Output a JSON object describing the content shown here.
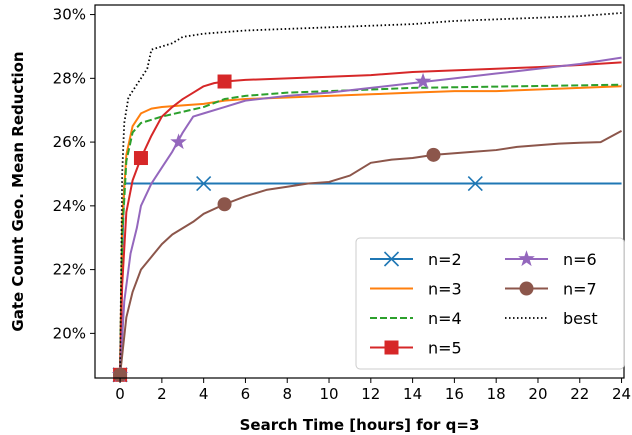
{
  "chart_data": {
    "type": "line",
    "xlabel": "Search Time [hours] for q=3",
    "ylabel": "Gate Count Geo. Mean Reduction",
    "xlim": [
      -1.2,
      24.5
    ],
    "ylim": [
      18.6,
      30.3
    ],
    "xticks": [
      0,
      2,
      4,
      6,
      8,
      10,
      12,
      14,
      16,
      18,
      20,
      22,
      24
    ],
    "xtick_labels": [
      "0",
      "2",
      "4",
      "6",
      "8",
      "10",
      "12",
      "14",
      "16",
      "18",
      "20",
      "22",
      "24"
    ],
    "yticks": [
      20,
      22,
      24,
      26,
      28,
      30
    ],
    "ytick_labels": [
      "20%",
      "22%",
      "24%",
      "26%",
      "28%",
      "30%"
    ],
    "grid": false,
    "legend_position": "lower-right",
    "series": [
      {
        "name": "n=2",
        "color": "#1f77b4",
        "linestyle": "solid",
        "marker": "x",
        "x": [
          0,
          0.1,
          0.2,
          0.3,
          24
        ],
        "y": [
          18.7,
          22.5,
          24.7,
          24.7,
          24.7
        ],
        "markers_x": [
          0,
          4,
          17
        ],
        "markers_y": [
          18.7,
          24.7,
          24.7
        ]
      },
      {
        "name": "n=3",
        "color": "#ff7f0e",
        "linestyle": "solid",
        "marker": "none",
        "x": [
          0,
          0.1,
          0.3,
          0.6,
          1,
          1.5,
          2,
          3,
          4,
          5,
          6,
          8,
          10,
          12,
          14,
          16,
          18,
          20,
          22,
          24
        ],
        "y": [
          18.7,
          23.5,
          25.6,
          26.5,
          26.9,
          27.05,
          27.1,
          27.15,
          27.2,
          27.3,
          27.35,
          27.4,
          27.45,
          27.5,
          27.55,
          27.6,
          27.6,
          27.65,
          27.7,
          27.75
        ]
      },
      {
        "name": "n=4",
        "color": "#2ca02c",
        "linestyle": "dashed",
        "marker": "none",
        "x": [
          0,
          0.1,
          0.3,
          0.6,
          1,
          1.5,
          2,
          3,
          4,
          5,
          6,
          8,
          10,
          12,
          14,
          16,
          18,
          20,
          22,
          24
        ],
        "y": [
          18.7,
          23.0,
          25.4,
          26.3,
          26.6,
          26.7,
          26.8,
          26.95,
          27.1,
          27.35,
          27.45,
          27.55,
          27.6,
          27.65,
          27.7,
          27.72,
          27.74,
          27.76,
          27.78,
          27.8
        ]
      },
      {
        "name": "n=5",
        "color": "#d62728",
        "linestyle": "solid",
        "marker": "s",
        "x": [
          0,
          0.1,
          0.3,
          0.6,
          1,
          1.5,
          2,
          2.5,
          3,
          3.5,
          4,
          4.5,
          5,
          6,
          8,
          10,
          12,
          14,
          16,
          18,
          20,
          22,
          24
        ],
        "y": [
          18.7,
          21.5,
          23.8,
          24.8,
          25.5,
          26.2,
          26.8,
          27.1,
          27.35,
          27.55,
          27.75,
          27.85,
          27.9,
          27.95,
          28.0,
          28.05,
          28.1,
          28.2,
          28.25,
          28.3,
          28.35,
          28.42,
          28.5
        ],
        "markers_x": [
          0,
          1,
          5
        ],
        "markers_y": [
          18.7,
          25.5,
          27.9
        ]
      },
      {
        "name": "n=6",
        "color": "#9467bd",
        "linestyle": "solid",
        "marker": "*",
        "x": [
          0,
          0.2,
          0.5,
          0.8,
          1,
          1.5,
          2,
          2.5,
          3,
          3.5,
          4,
          5,
          6,
          8,
          10,
          12,
          14,
          16,
          18,
          20,
          22,
          24
        ],
        "y": [
          18.7,
          21.0,
          22.5,
          23.3,
          24.0,
          24.7,
          25.2,
          25.7,
          26.3,
          26.8,
          26.9,
          27.1,
          27.3,
          27.45,
          27.55,
          27.7,
          27.85,
          28.0,
          28.15,
          28.3,
          28.45,
          28.65
        ],
        "markers_x": [
          0,
          2.8,
          14.5
        ],
        "markers_y": [
          18.7,
          26.0,
          27.9
        ]
      },
      {
        "name": "n=7",
        "color": "#8c564b",
        "linestyle": "solid",
        "marker": "o",
        "x": [
          0,
          0.3,
          0.6,
          1,
          1.5,
          2,
          2.5,
          3,
          3.5,
          4,
          5,
          6,
          7,
          8,
          9,
          10,
          11,
          12,
          13,
          14,
          15,
          16,
          17,
          18,
          19,
          20,
          21,
          22,
          23,
          24
        ],
        "y": [
          18.7,
          20.5,
          21.3,
          22.0,
          22.4,
          22.8,
          23.1,
          23.3,
          23.5,
          23.75,
          24.05,
          24.3,
          24.5,
          24.6,
          24.7,
          24.75,
          24.95,
          25.35,
          25.45,
          25.5,
          25.6,
          25.65,
          25.7,
          25.75,
          25.85,
          25.9,
          25.95,
          25.98,
          26.0,
          26.35
        ],
        "markers_x": [
          0,
          5,
          15
        ],
        "markers_y": [
          18.7,
          24.05,
          25.6
        ]
      },
      {
        "name": "best",
        "color": "#000000",
        "linestyle": "dotted",
        "marker": "none",
        "x": [
          0,
          0.1,
          0.2,
          0.4,
          0.7,
          1,
          1.3,
          1.5,
          2,
          2.5,
          3,
          4,
          5,
          6,
          8,
          10,
          12,
          14,
          16,
          18,
          20,
          22,
          24
        ],
        "y": [
          18.7,
          25.0,
          26.6,
          27.4,
          27.7,
          28.0,
          28.3,
          28.9,
          29.0,
          29.1,
          29.3,
          29.4,
          29.45,
          29.5,
          29.55,
          29.6,
          29.65,
          29.7,
          29.8,
          29.85,
          29.9,
          29.95,
          30.05
        ]
      }
    ]
  }
}
